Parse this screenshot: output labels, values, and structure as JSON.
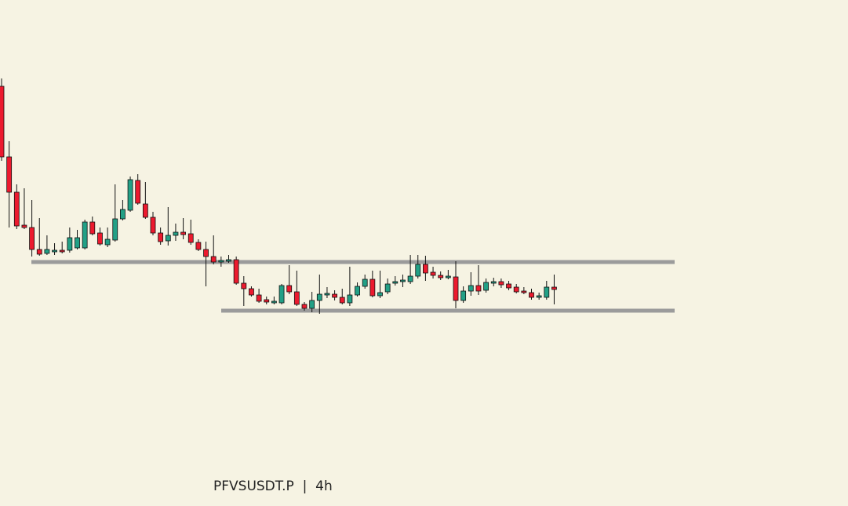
{
  "chart_data": {
    "type": "candlestick",
    "title": "PFVSUSDT.P  |  4h",
    "up_color": "#22a086",
    "down_color": "#ec1a2e",
    "ylim": [
      0,
      645
    ],
    "levels": [
      311,
      249
    ],
    "level_color": "#9b9b9b",
    "open": [
      535,
      445,
      400,
      358,
      355,
      327,
      322,
      324,
      326,
      326,
      329,
      329,
      362,
      348,
      333,
      339,
      366,
      377,
      415,
      385,
      368,
      348,
      338,
      345,
      349,
      347,
      336,
      327,
      318,
      311,
      312,
      314,
      284,
      277,
      269,
      263,
      259,
      259,
      281,
      273,
      257,
      252,
      262,
      269,
      270,
      266,
      259,
      269,
      280,
      289,
      268,
      273,
      284,
      286,
      286,
      293,
      308,
      298,
      294,
      291,
      292,
      262,
      274,
      281,
      275,
      284,
      286,
      283,
      279,
      274,
      272,
      266,
      266,
      279
    ],
    "high": [
      545,
      465,
      410,
      405,
      390,
      367,
      345,
      335,
      337,
      355,
      352,
      365,
      369,
      355,
      355,
      410,
      390,
      420,
      423,
      413,
      375,
      355,
      381,
      360,
      367,
      365,
      340,
      337,
      345,
      318,
      320,
      318,
      293,
      280,
      277,
      267,
      267,
      283,
      307,
      300,
      260,
      273,
      295,
      279,
      275,
      277,
      305,
      285,
      295,
      300,
      300,
      290,
      293,
      295,
      320,
      320,
      319,
      305,
      299,
      301,
      312,
      280,
      298,
      307,
      290,
      291,
      290,
      287,
      283,
      279,
      277,
      272,
      287,
      295
    ],
    "low": [
      440,
      355,
      353,
      353,
      318,
      319,
      320,
      320,
      322,
      323,
      327,
      327,
      345,
      332,
      330,
      337,
      364,
      375,
      384,
      366,
      345,
      333,
      332,
      338,
      340,
      333,
      325,
      280,
      308,
      305,
      310,
      282,
      255,
      267,
      259,
      257,
      257,
      257,
      270,
      255,
      249,
      247,
      245,
      265,
      262,
      257,
      255,
      267,
      277,
      266,
      265,
      270,
      281,
      279,
      283,
      290,
      287,
      290,
      288,
      289,
      252,
      259,
      268,
      269,
      272,
      280,
      278,
      275,
      271,
      270,
      263,
      263,
      263,
      257
    ],
    "close": [
      445,
      400,
      357,
      355,
      327,
      321,
      327,
      326,
      324,
      342,
      342,
      362,
      347,
      334,
      340,
      366,
      378,
      416,
      386,
      368,
      348,
      337,
      345,
      349,
      346,
      336,
      327,
      318,
      311,
      313,
      314,
      284,
      277,
      269,
      261,
      260,
      261,
      281,
      273,
      257,
      252,
      262,
      270,
      271,
      266,
      259,
      269,
      280,
      289,
      268,
      272,
      283,
      286,
      288,
      293,
      308,
      297,
      294,
      291,
      293,
      262,
      274,
      281,
      274,
      285,
      286,
      282,
      278,
      273,
      272,
      266,
      268,
      279,
      276
    ]
  }
}
